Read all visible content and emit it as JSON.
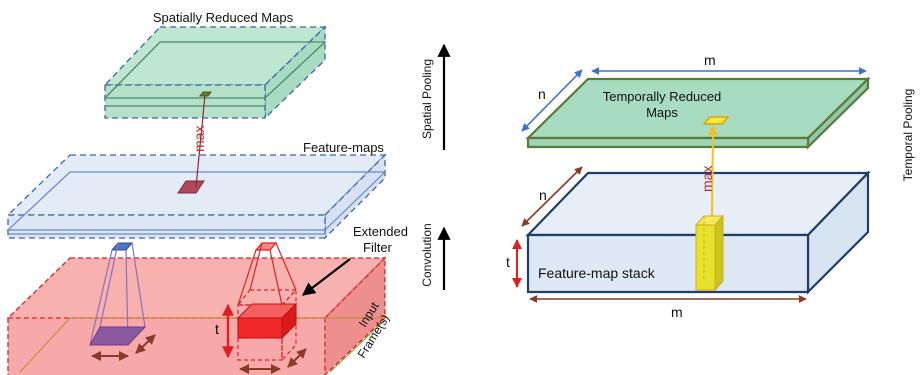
{
  "left_panel": {
    "spatially_reduced_maps": "Spatially Reduced Maps",
    "feature_maps": "Feature-maps",
    "max": "max",
    "extended_filter_line1": "Extended",
    "extended_filter_line2": "Filter",
    "input_line1": "Input",
    "input_line2": "Frame(s)",
    "t": "t"
  },
  "middle_axis": {
    "spatial_pooling": "Spatial Pooling",
    "convolution": "Convolution"
  },
  "right_panel": {
    "m_top": "m",
    "n_top": "n",
    "temporally_reduced_line1": "Temporally Reduced",
    "temporally_reduced_line2": "Maps",
    "max": "max",
    "n_mid": "n",
    "t": "t",
    "feature_map_stack": "Feature-map stack",
    "m_bottom": "m",
    "temporal_pooling": "Temporal Pooling"
  },
  "colors": {
    "green_fill": "#a8dcc0",
    "green_stroke": "#5a7a3a",
    "blue_fill": "#e2ebf6",
    "blue_stroke": "#1f3f66",
    "red_fill": "#f6a0a0",
    "red_stroke": "#e02020",
    "max_red": "#c0282a",
    "dim_brown": "#8b3a2a",
    "dim_blue": "#3a74c8",
    "yellow": "#e8e62a"
  }
}
